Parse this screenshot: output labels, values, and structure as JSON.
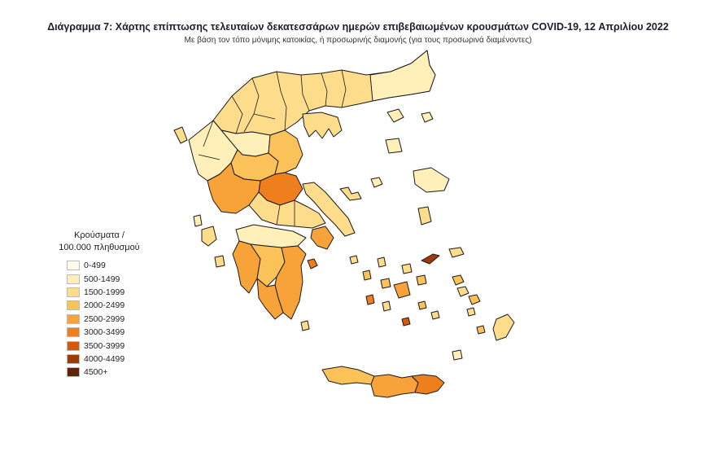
{
  "header": {
    "title": "Διάγραμμα 7: Χάρτης επίπτωσης τελευταίων δεκατεσσάρων ημερών επιβεβαιωμένων κρουσμάτων COVID-19, 12 Απριλίου 2022",
    "subtitle": "Με βάση τον τόπο μόνιμης κατοικίας, ή προσωρινής διαμονής (για τους προσωρινά διαμένοντες)"
  },
  "legend": {
    "title_line1": "Κρούσματα /",
    "title_line2": "100.000 πληθυσμού",
    "items": [
      {
        "label": "0-499",
        "color": "#fffbe6"
      },
      {
        "label": "500-1499",
        "color": "#fef0b8"
      },
      {
        "label": "1500-1999",
        "color": "#fddd8c"
      },
      {
        "label": "2000-2499",
        "color": "#fbc25a"
      },
      {
        "label": "2500-2999",
        "color": "#f8a23a"
      },
      {
        "label": "3000-3499",
        "color": "#ef7f1c"
      },
      {
        "label": "3500-3999",
        "color": "#d5590b"
      },
      {
        "label": "4000-4499",
        "color": "#9e3a0a"
      },
      {
        "label": "4500+",
        "color": "#5e2406"
      }
    ]
  }
}
